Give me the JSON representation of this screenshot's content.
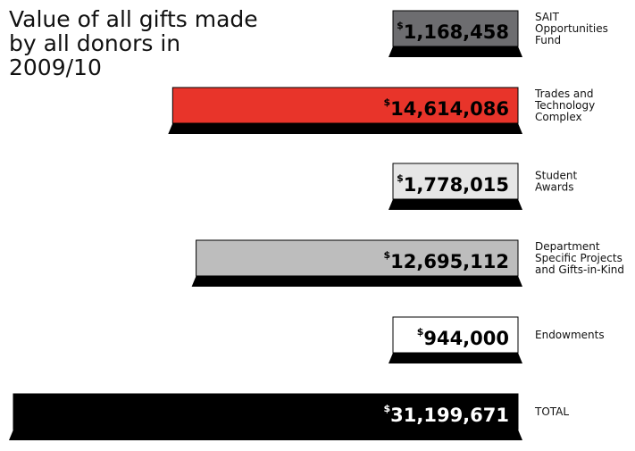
{
  "chart_data": {
    "type": "bar",
    "orientation": "horizontal",
    "title": "Value of all gifts made by all donors in 2009/10",
    "currency_symbol": "$",
    "categories": [
      "SAIT Opportunities Fund",
      "Trades and Technology Complex",
      "Student Awards",
      "Department Specific Projects and Gifts-in-Kind",
      "Endowments",
      "TOTAL"
    ],
    "category_lines": [
      [
        "SAIT",
        "Opportunities",
        "Fund"
      ],
      [
        "Trades and",
        "Technology",
        "Complex"
      ],
      [
        "Student",
        "Awards"
      ],
      [
        "Department",
        "Specific Projects",
        "and Gifts-in-Kind"
      ],
      [
        "Endowments"
      ],
      [
        "TOTAL"
      ]
    ],
    "values": [
      1168458,
      14614086,
      1778015,
      12695112,
      944000,
      31199671
    ],
    "value_labels": [
      "1,168,458",
      "14,614,086",
      "1,778,015",
      "12,695,112",
      "944,000",
      "31,199,671"
    ],
    "colors": [
      "#6d6d70",
      "#e8342a",
      "#e6e6e6",
      "#bdbdbd",
      "#ffffff",
      "#000000"
    ],
    "value_text_colors": [
      "#000000",
      "#000000",
      "#000000",
      "#000000",
      "#000000",
      "#ffffff"
    ],
    "legend": "none",
    "grid": false
  }
}
